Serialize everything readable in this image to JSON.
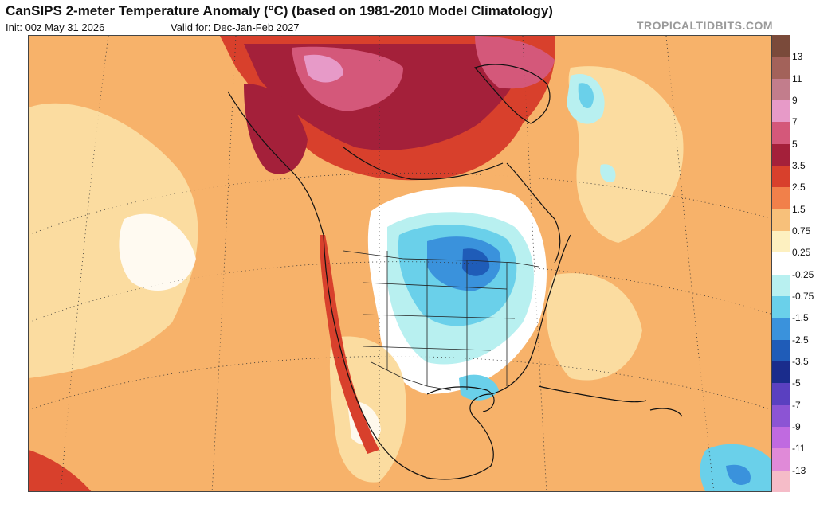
{
  "header": {
    "title": "CanSIPS 2-meter Temperature Anomaly (°C) (based on 1981-2010 Model Climatology)",
    "init": "Init: 00z May 31 2026",
    "valid": "Valid for: Dec-Jan-Feb 2027",
    "brand": "TROPICALTIDBITS.COM"
  },
  "legend": {
    "labels": [
      "13",
      "11",
      "9",
      "7",
      "5",
      "3.5",
      "2.5",
      "1.5",
      "0.75",
      "0.25",
      "-0.25",
      "-0.75",
      "-1.5",
      "-2.5",
      "-3.5",
      "-5",
      "-7",
      "-9",
      "-11",
      "-13"
    ],
    "colors": [
      "#7a4a3a",
      "#a3625a",
      "#c27d8c",
      "#e79ac8",
      "#d4587a",
      "#a4203a",
      "#d8402c",
      "#f1804a",
      "#f7c07a",
      "#fdf0c0",
      "#ffffff",
      "#b8f0f0",
      "#6ad0ea",
      "#3a92dc",
      "#1f5cb8",
      "#1a2c8c",
      "#5a40c0",
      "#8c54d4",
      "#c06ae0",
      "#e08ad8",
      "#f5bcc8"
    ]
  },
  "map": {
    "colors": {
      "ocean_warm": "#f7b26a",
      "land_warm": "#f6b770",
      "pale": "#fbdca0",
      "neutral": "#ffffff",
      "cold_light": "#b8f0f0",
      "cold_mid": "#6ad0ea",
      "cold_deep": "#3a92dc",
      "cold_core": "#1f5cb8",
      "hot": "#d8402c",
      "hotter": "#a4203a",
      "hottest": "#d4587a",
      "pink": "#e79ac8"
    }
  }
}
